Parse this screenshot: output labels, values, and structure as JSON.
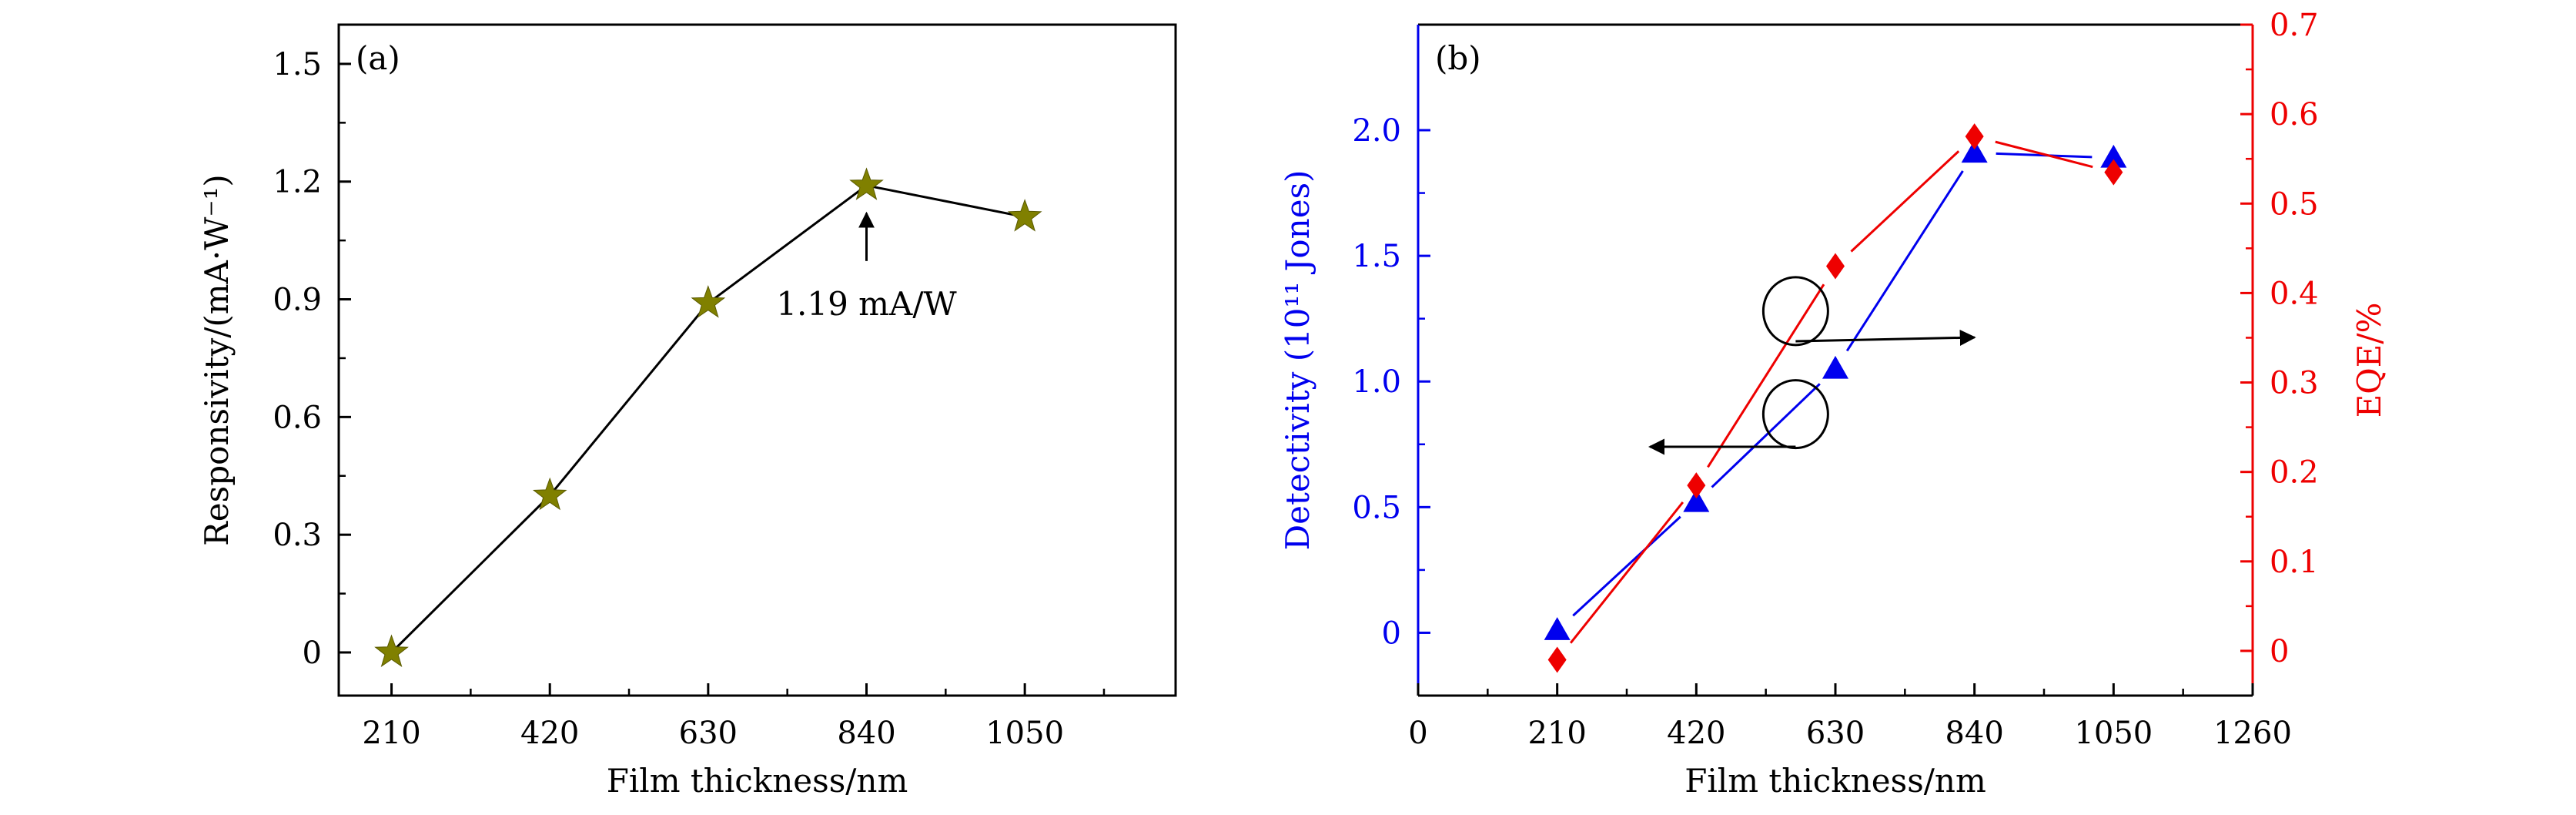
{
  "colors": {
    "axis": "#000000",
    "star": "#808000",
    "detectivity": "#0000ee",
    "eqe": "#ee0000",
    "line_a": "#000000",
    "annot": "#000000",
    "background": "#ffffff"
  },
  "chart_data": [
    {
      "id": "a",
      "type": "line",
      "panel_label": "(a)",
      "title": "",
      "xlabel": "Film thickness/nm",
      "ylabel": "Responsivity/(mA·W⁻¹)",
      "xlim": [
        140,
        1250
      ],
      "ylim": [
        -0.11,
        1.6
      ],
      "x_ticks": [
        210,
        420,
        630,
        840,
        1050
      ],
      "x_tick_labels": [
        "210",
        "420",
        "630",
        "840",
        "1050"
      ],
      "x_minor_ticks": [
        315,
        525,
        735,
        945,
        1155
      ],
      "y_ticks": [
        0,
        0.3,
        0.6,
        0.9,
        1.2,
        1.5
      ],
      "y_tick_labels": [
        "0",
        "0.3",
        "0.6",
        "0.9",
        "1.2",
        "1.5"
      ],
      "y_minor_ticks": [
        0.15,
        0.45,
        0.75,
        1.05,
        1.35
      ],
      "series": [
        {
          "name": "Responsivity",
          "marker": "star",
          "x": [
            210,
            420,
            630,
            840,
            1050
          ],
          "values": [
            0.0,
            0.4,
            0.89,
            1.19,
            1.11
          ]
        }
      ],
      "annotations": [
        {
          "text": "1.19 mA/W",
          "x": 840,
          "y": 1.19,
          "arrow": "up"
        }
      ]
    },
    {
      "id": "b",
      "type": "line",
      "panel_label": "(b)",
      "title": "",
      "xlabel": "Film thickness/nm",
      "ylabel": "Detectivity (10¹¹ Jones)",
      "ylabel_right": "EQE/%",
      "xlim": [
        0,
        1260
      ],
      "ylim": [
        -0.25,
        2.42
      ],
      "ylim_right": [
        -0.05,
        0.7
      ],
      "x_ticks": [
        0,
        210,
        420,
        630,
        840,
        1050,
        1260
      ],
      "x_tick_labels": [
        "0",
        "210",
        "420",
        "630",
        "840",
        "1050",
        "1260"
      ],
      "x_minor_ticks": [
        105,
        315,
        525,
        735,
        945,
        1155
      ],
      "y_ticks": [
        0,
        0.5,
        1.0,
        1.5,
        2.0
      ],
      "y_tick_labels": [
        "0",
        "0.5",
        "1.0",
        "1.5",
        "2.0"
      ],
      "y_minor_ticks": [
        0.25,
        0.75,
        1.25,
        1.75
      ],
      "y_ticks_right": [
        0,
        0.1,
        0.2,
        0.3,
        0.4,
        0.5,
        0.6,
        0.7
      ],
      "y_tick_labels_right": [
        "0",
        "0.1",
        "0.2",
        "0.3",
        "0.4",
        "0.5",
        "0.6",
        "0.7"
      ],
      "y_minor_ticks_right": [
        0.05,
        0.15,
        0.25,
        0.35,
        0.45,
        0.55,
        0.65
      ],
      "series": [
        {
          "name": "Detectivity",
          "axis": "left",
          "marker": "triangle",
          "x": [
            210,
            420,
            630,
            840,
            1050
          ],
          "values": [
            0.01,
            0.52,
            1.05,
            1.91,
            1.89
          ]
        },
        {
          "name": "EQE",
          "axis": "right",
          "marker": "diamond",
          "x": [
            210,
            420,
            630,
            840,
            1050
          ],
          "values": [
            -0.01,
            0.185,
            0.43,
            0.575,
            0.535
          ]
        }
      ],
      "axis_indicators": [
        {
          "target_axis": "right",
          "circle_x": 570,
          "circle_y_left": 1.28,
          "arrow_to_x": 840,
          "arrow_y_left": 1.16
        },
        {
          "target_axis": "left",
          "circle_x": 570,
          "circle_y_left": 0.87,
          "arrow_to_x": 350,
          "arrow_y_left": 0.74
        }
      ]
    }
  ]
}
